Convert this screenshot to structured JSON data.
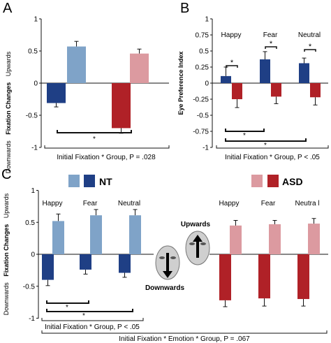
{
  "panels": {
    "A": "A",
    "B": "B",
    "C": "C"
  },
  "colors": {
    "nt_dark": "#1f3f85",
    "nt_light": "#7fa3c8",
    "asd_dark": "#b02127",
    "asd_light": "#dc9aa0",
    "axis": "#111111"
  },
  "legend": {
    "nt": "NT",
    "asd": "ASD"
  },
  "inset": {
    "upwards": "Upwards",
    "downwards": "Downwards"
  },
  "chart_data": [
    {
      "panel": "A",
      "type": "bar",
      "ylabel_main": "Fixation Changes",
      "ylabel_down": "Downwards",
      "ylabel_up": "Upwards",
      "ylim": [
        -1,
        1
      ],
      "yticks": [
        "1",
        "0.5",
        "0",
        "-0.5",
        "-1"
      ],
      "series": [
        {
          "name": "NT downwards",
          "value": -0.31,
          "error": 0.06
        },
        {
          "name": "NT upwards",
          "value": 0.57,
          "error": 0.08
        },
        {
          "name": "ASD downwards",
          "value": -0.7,
          "error": 0.08
        },
        {
          "name": "ASD upwards",
          "value": 0.46,
          "error": 0.07
        }
      ],
      "significance": "*",
      "caption": "Initial Fixation * Group, P = .028"
    },
    {
      "panel": "B",
      "type": "bar",
      "ylabel": "Eye Preference Index",
      "ylim": [
        -1,
        1
      ],
      "yticks": [
        "1",
        "0.75",
        "0.5",
        "0.25",
        "0",
        "-0.25",
        "-0.5",
        "-0.75",
        "-1"
      ],
      "categories": [
        "Happy",
        "Fear",
        "Neutral"
      ],
      "series": [
        {
          "name": "NT",
          "values": [
            0.11,
            0.37,
            0.31
          ],
          "errors": [
            0.14,
            0.12,
            0.08
          ]
        },
        {
          "name": "ASD",
          "values": [
            -0.25,
            -0.21,
            -0.22
          ],
          "errors": [
            0.13,
            0.11,
            0.12
          ]
        }
      ],
      "significance": [
        "*",
        "*",
        "*",
        "*",
        "*"
      ],
      "caption": "Initial Fixation * Group, P < .05"
    },
    {
      "panel": "C",
      "type": "bar",
      "ylabel_main": "Fixation Changes",
      "ylabel_down": "Downwards",
      "ylabel_up": "Upwards",
      "ylim": [
        -1,
        1
      ],
      "yticks": [
        "1",
        "0.5",
        "0",
        "-0.5",
        "-1"
      ],
      "categories_nt": [
        "Happy",
        "Fear",
        "Neutral"
      ],
      "categories_asd": [
        "Happy",
        "Fear",
        "Neutra l"
      ],
      "series": [
        {
          "name": "NT downwards",
          "values": [
            -0.4,
            -0.24,
            -0.29
          ],
          "errors": [
            0.09,
            0.07,
            0.07
          ]
        },
        {
          "name": "NT upwards",
          "values": [
            0.52,
            0.61,
            0.61
          ],
          "errors": [
            0.11,
            0.09,
            0.09
          ]
        },
        {
          "name": "ASD upwards",
          "values": [
            0.45,
            0.47,
            0.48
          ],
          "errors": [
            0.08,
            0.06,
            0.08
          ]
        },
        {
          "name": "ASD downwards",
          "values": [
            -0.72,
            -0.69,
            -0.7
          ],
          "errors": [
            0.1,
            0.12,
            0.11
          ]
        }
      ],
      "significance": [
        "*",
        "*"
      ],
      "caption_group": "Initial Fixation * Group, P < .05",
      "caption_emotion": "Initial Fixation * Emotion * Group, P = .067"
    }
  ]
}
